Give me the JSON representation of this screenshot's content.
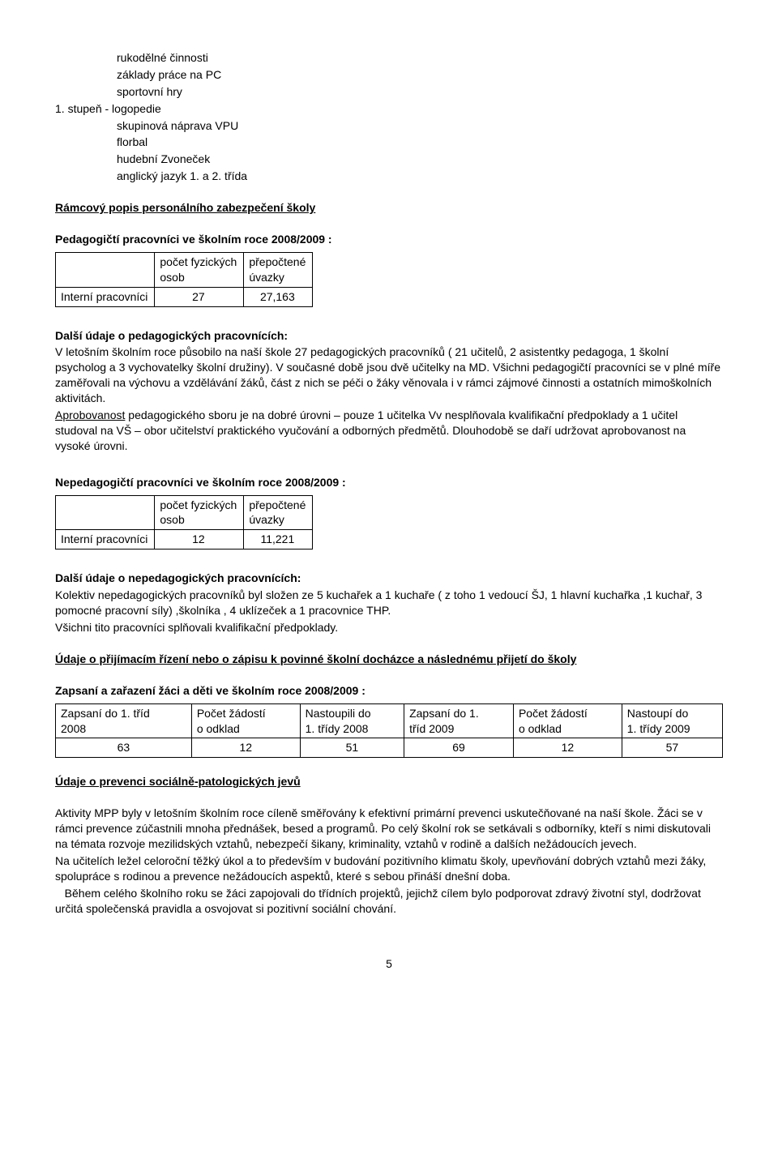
{
  "top_list": {
    "indented": [
      "rukodělné činnosti",
      "základy práce na PC",
      "sportovní hry"
    ],
    "left": "1. stupeň - logopedie",
    "indented2": [
      "skupinová náprava VPU",
      "florbal",
      "hudební Zvoneček",
      "anglický jazyk 1. a 2. třída"
    ]
  },
  "section1": {
    "heading": "Rámcový popis personálního zabezpečení školy",
    "subheading": "Pedagogičtí pracovníci ve školním roce 2008/2009 :",
    "table": {
      "col1_header_l1": "počet fyzických",
      "col1_header_l2": "osob",
      "col2_header_l1": "přepočtené",
      "col2_header_l2": "úvazky",
      "row_label": "Interní pracovníci",
      "row_col1": "27",
      "row_col2": "27,163"
    },
    "para2_heading": "Další údaje o pedagogických pracovnících:",
    "para2_body": "V letošním školním roce působilo na naší škole 27 pedagogických pracovníků ( 21 učitelů, 2 asistentky pedagoga, 1 školní psycholog a 3 vychovatelky školní družiny). V současné době jsou dvě učitelky na MD. Všichni pedagogičtí pracovníci se v plné míře zaměřovali na výchovu a vzdělávání žáků, část z nich se péči o žáky věnovala i v rámci zájmové činnosti a ostatních mimoškolních aktivitách.",
    "aprob_word": "Aprobovanost",
    "aprob_rest": " pedagogického sboru je na dobré úrovni – pouze 1 učitelka Vv nesplňovala kvalifikační předpoklady a 1 učitel studoval na VŠ – obor učitelství praktického vyučování a odborných předmětů. Dlouhodobě se daří udržovat aprobovanost na vysoké úrovni."
  },
  "section2": {
    "subheading": "Nepedagogičtí pracovníci ve školním roce 2008/2009 :",
    "table": {
      "col1_header_l1": "počet fyzických",
      "col1_header_l2": "osob",
      "col2_header_l1": "přepočtené",
      "col2_header_l2": "úvazky",
      "row_label": "Interní pracovníci",
      "row_col1": "12",
      "row_col2": "11,221"
    },
    "para_heading": "Další údaje o nepedagogických pracovnících:",
    "para_body": "Kolektiv nepedagogických pracovníků  byl  složen ze 5 kuchařek a 1 kuchaře ( z toho 1 vedoucí ŠJ, 1 hlavní kuchařka ,1 kuchař, 3 pomocné pracovní síly) ,školníka , 4 uklízeček a 1 pracovnice THP.",
    "para_body2": "Všichni  tito pracovníci splňovali  kvalifikační předpoklady."
  },
  "section3": {
    "heading": "Údaje o přijímacím řízení nebo o zápisu k povinné školní docházce a následnému přijetí do školy",
    "subheading": "Zapsaní a zařazení žáci a děti ve školním roce 2008/2009 :",
    "table": {
      "headers": [
        {
          "l1": "Zapsaní do 1. tříd",
          "l2": "2008"
        },
        {
          "l1": "Počet žádostí",
          "l2": "o odklad"
        },
        {
          "l1": "Nastoupili do",
          "l2": "1. třídy 2008"
        },
        {
          "l1": "Zapsaní do 1.",
          "l2": "tříd 2009"
        },
        {
          "l1": "Počet žádostí",
          "l2": "o odklad"
        },
        {
          "l1": "Nastoupí do",
          "l2": "1. třídy 2009"
        }
      ],
      "row": [
        "63",
        "12",
        "51",
        "69",
        "12",
        "57"
      ]
    }
  },
  "section4": {
    "heading": "Údaje o prevenci sociálně-patologických jevů",
    "p1": "Aktivity MPP byly v letošním školním roce cíleně směřovány k efektivní primární prevenci uskutečňované na naší škole. Žáci se v rámci prevence zúčastnili mnoha přednášek, besed a programů. Po celý školní rok se setkávali s odborníky, kteří s nimi diskutovali na témata rozvoje mezilidských vztahů, nebezpečí šikany, kriminality, vztahů v rodině a dalších nežádoucích jevech.",
    "p2": "Na učitelích ležel celoroční těžký úkol a to především v budování pozitivního klimatu školy, upevňování dobrých vztahů mezi žáky, spolupráce s rodinou a prevence nežádoucích aspektů, které s sebou přináší dnešní doba.",
    "p3": "   Během celého školního roku se žáci zapojovali do třídních projektů, jejichž cílem bylo podporovat zdravý životní styl, dodržovat určitá společenská pravidla a osvojovat si pozitivní sociální chování."
  },
  "page_number": "5"
}
